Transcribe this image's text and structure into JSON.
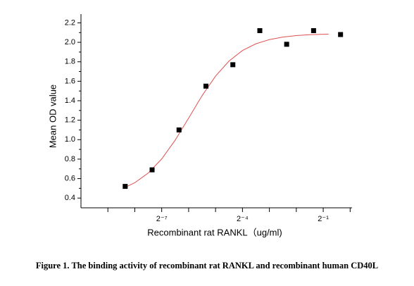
{
  "chart_data": {
    "type": "scatter",
    "xlabel": "Recombinant rat RANKL（ug/ml)",
    "ylabel": "Mean OD value",
    "caption": "Figure 1. The binding activity of recombinant rat RANKL and recombinant human CD40L",
    "xscale": "log2",
    "xlim": [
      0.000977,
      1.05
    ],
    "xticks": [
      {
        "value": 0.0078125,
        "label": "2⁻⁷"
      },
      {
        "value": 0.0625,
        "label": "2⁻⁴"
      },
      {
        "value": 0.5,
        "label": "2⁻¹"
      }
    ],
    "xminorticks": [
      0.001953125,
      0.00390625,
      0.015625,
      0.03125,
      0.125,
      0.25,
      1
    ],
    "ylim": [
      0.3,
      2.29
    ],
    "yticks": [
      0.4,
      0.6,
      0.8,
      {
        "value": 1,
        "label": "1.0"
      },
      1.2,
      1.4,
      1.6,
      1.8,
      {
        "value": 2,
        "label": "2.0"
      },
      2.2
    ],
    "yminorticks": [
      0.5,
      0.7,
      0.9,
      1.1,
      1.3,
      1.5,
      1.7,
      1.9,
      2.1
    ],
    "points": {
      "color": "#000000",
      "x": [
        0.00305,
        0.0061,
        0.0122,
        0.0244,
        0.0488,
        0.0977,
        0.195,
        0.39,
        0.781
      ],
      "values": [
        0.52,
        0.69,
        1.1,
        1.55,
        1.77,
        2.12,
        1.98,
        2.12,
        2.08
      ]
    },
    "curve": {
      "color": "#e05050",
      "x": [
        0.00296,
        0.00391,
        0.00552,
        0.00781,
        0.01105,
        0.01563,
        0.0221,
        0.03125,
        0.0442,
        0.0625,
        0.0884,
        0.125,
        0.1768,
        0.25,
        0.3536,
        0.5,
        0.574
      ],
      "values": [
        0.505,
        0.558,
        0.657,
        0.802,
        0.995,
        1.222,
        1.452,
        1.653,
        1.808,
        1.916,
        1.985,
        2.028,
        2.054,
        2.069,
        2.078,
        2.083,
        2.085
      ]
    }
  }
}
